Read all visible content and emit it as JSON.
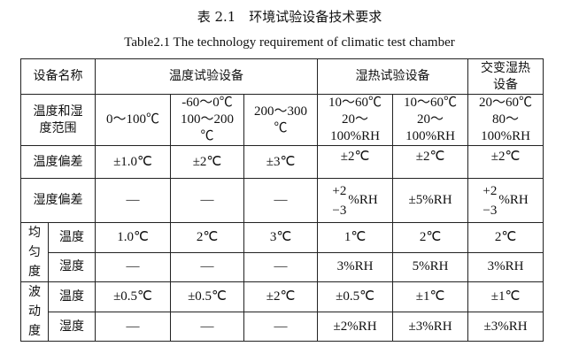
{
  "caption_cn": "表 2.1　环境试验设备技术要求",
  "caption_en": "Table2.1 The technology requirement of climatic test chamber",
  "header": {
    "name": "设备名称",
    "temp": "温度试验设备",
    "humid": "湿热试验设备",
    "alt": "交变湿热设备"
  },
  "rows": {
    "range": {
      "label": "温度和湿度范围",
      "c": [
        "0～100℃",
        "-60～0℃ 100～200 ℃",
        "200～300 ℃",
        "10～60℃ 20～ 100%RH",
        "10～60℃ 20～ 100%RH",
        "20～60℃ 80～ 100%RH"
      ]
    },
    "temp_dev": {
      "label": "温度偏差",
      "c": [
        "±1.0℃",
        "±2℃",
        "±3℃",
        "±2℃",
        "±2℃",
        "±2℃"
      ]
    },
    "hum_dev": {
      "label": "湿度偏差",
      "c": [
        "—",
        "—",
        "—",
        "",
        "±5%RH",
        ""
      ],
      "plus": "+2",
      "minus": "−3",
      "unit": "%RH"
    },
    "uniformity": {
      "group": "均匀度",
      "temp": {
        "label": "温度",
        "c": [
          "1.0℃",
          "2℃",
          "3℃",
          "1℃",
          "2℃",
          "2℃"
        ]
      },
      "hum": {
        "label": "湿度",
        "c": [
          "—",
          "—",
          "—",
          "3%RH",
          "5%RH",
          "3%RH"
        ]
      }
    },
    "fluctuation": {
      "group": "波动度",
      "temp": {
        "label": "温度",
        "c": [
          "±0.5℃",
          "±0.5℃",
          "±2℃",
          "±0.5℃",
          "±1℃",
          "±1℃"
        ]
      },
      "hum": {
        "label": "湿度",
        "c": [
          "—",
          "—",
          "—",
          "±2%RH",
          "±3%RH",
          "±3%RH"
        ]
      }
    }
  }
}
